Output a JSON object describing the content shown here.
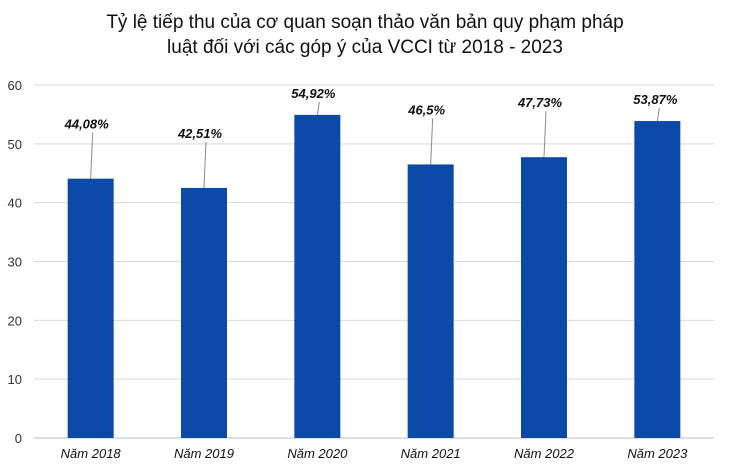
{
  "chart_data": {
    "type": "bar",
    "title_line1": "Tỷ lệ tiếp thu của cơ quan soạn thảo văn bản quy phạm pháp",
    "title_line2": "luật đối với các góp ý của VCCI từ 2018 - 2023",
    "categories": [
      "Năm 2018",
      "Năm 2019",
      "Năm 2020",
      "Năm 2021",
      "Năm 2022",
      "Năm 2023"
    ],
    "values": [
      44.08,
      42.51,
      54.92,
      46.5,
      47.73,
      53.87
    ],
    "data_labels": [
      "44,08%",
      "42,51%",
      "54,92%",
      "46,5%",
      "47,73%",
      "53,87%"
    ],
    "ylim": [
      0,
      60
    ],
    "yticks": [
      0,
      10,
      20,
      30,
      40,
      50,
      60
    ],
    "grid": true,
    "legend": "none",
    "bar_color": "#0b4aa6"
  }
}
